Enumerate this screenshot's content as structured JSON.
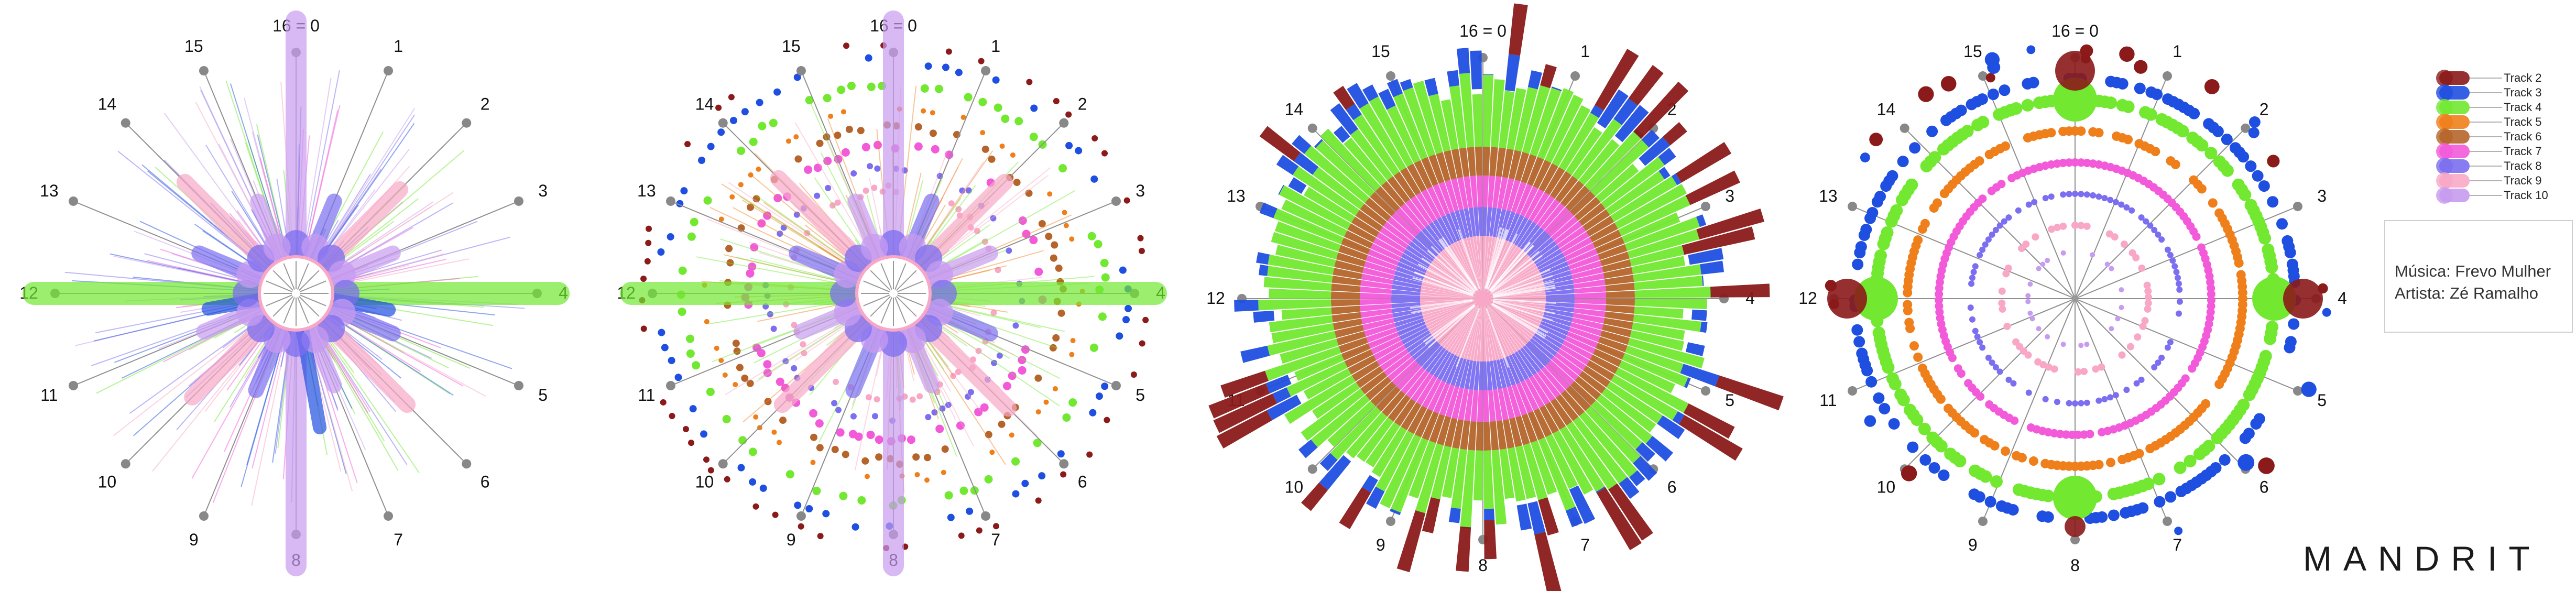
{
  "sector_labels": [
    "16 = 0",
    "1",
    "2",
    "3",
    "4",
    "5",
    "6",
    "7",
    "8",
    "9",
    "10",
    "11",
    "12",
    "13",
    "14",
    "15"
  ],
  "legend": {
    "items": [
      {
        "label": "Track 2",
        "color": "#8b1a1a"
      },
      {
        "label": "Track 3",
        "color": "#1f4fe0"
      },
      {
        "label": "Track 4",
        "color": "#72e831"
      },
      {
        "label": "Track 5",
        "color": "#ef7f1a"
      },
      {
        "label": "Track 6",
        "color": "#b5652b"
      },
      {
        "label": "Track 7",
        "color": "#f25ad9"
      },
      {
        "label": "Track 8",
        "color": "#7b6ef0"
      },
      {
        "label": "Track 9",
        "color": "#f8a8c6"
      },
      {
        "label": "Track 10",
        "color": "#c79bf0"
      }
    ]
  },
  "info": {
    "musica": "Música: Frevo Mulher",
    "artista": "Artista: Zé Ramalho"
  },
  "brand": "MANDRIT"
}
